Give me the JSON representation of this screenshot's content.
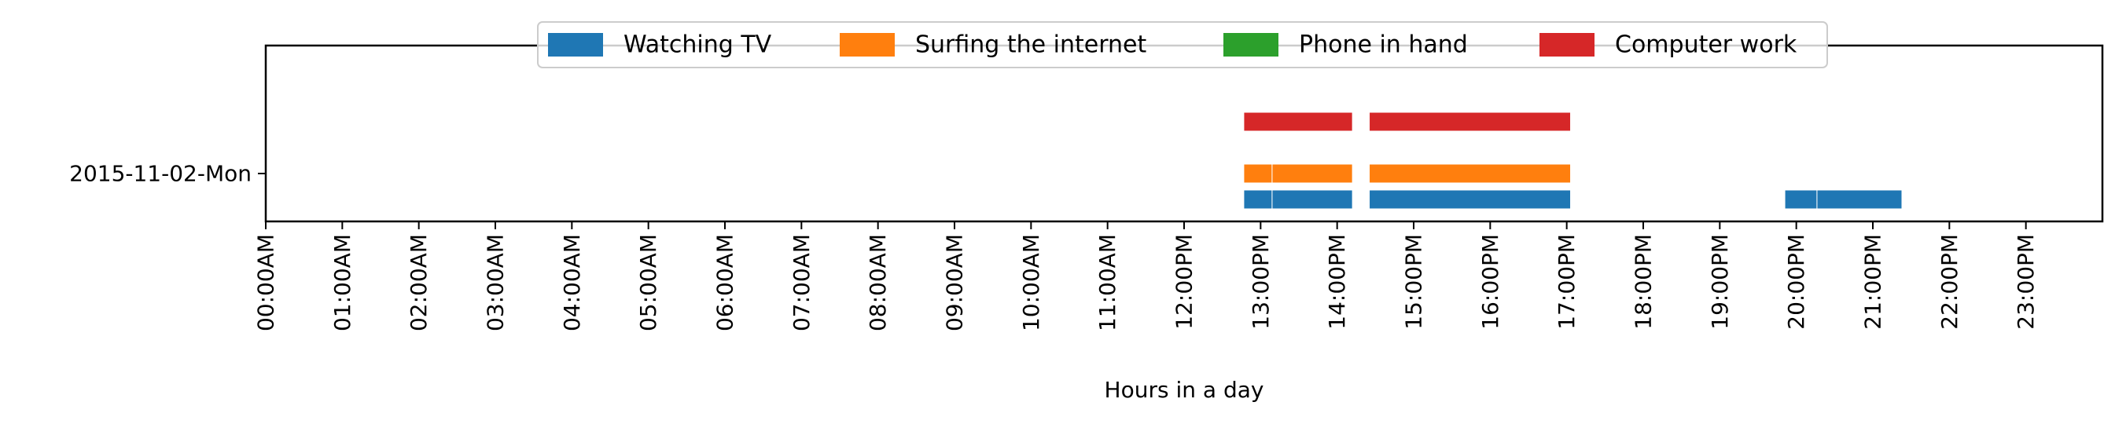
{
  "chart_data": {
    "type": "bar",
    "orientation": "broken-horizontal-bars",
    "xlabel": "Hours in a day",
    "ylabel": "",
    "xlim": [
      0,
      24
    ],
    "x_ticks": [
      "00:00AM",
      "01:00AM",
      "02:00AM",
      "03:00AM",
      "04:00AM",
      "05:00AM",
      "06:00AM",
      "07:00AM",
      "08:00AM",
      "09:00AM",
      "10:00AM",
      "11:00AM",
      "12:00PM",
      "13:00PM",
      "14:00PM",
      "15:00PM",
      "16:00PM",
      "17:00PM",
      "18:00PM",
      "19:00PM",
      "20:00PM",
      "21:00PM",
      "22:00PM",
      "23:00PM"
    ],
    "categories": [
      "2015-11-02-Mon"
    ],
    "grid": false,
    "legend_placement": "top-center",
    "series": [
      {
        "name": "Watching TV",
        "color": "#1f77b4",
        "lane": 0,
        "intervals": [
          [
            12.78,
            13.15
          ],
          [
            13.15,
            14.2
          ],
          [
            14.42,
            17.05
          ],
          [
            19.85,
            20.27
          ],
          [
            20.27,
            21.38
          ]
        ]
      },
      {
        "name": "Surfing the internet",
        "color": "#ff7f0e",
        "lane": 1,
        "intervals": [
          [
            12.78,
            13.15
          ],
          [
            13.15,
            14.2
          ],
          [
            14.42,
            17.05
          ]
        ]
      },
      {
        "name": "Phone in hand",
        "color": "#2ca02c",
        "lane": 2,
        "intervals": []
      },
      {
        "name": "Computer work",
        "color": "#d62728",
        "lane": 3,
        "intervals": [
          [
            12.78,
            14.2
          ],
          [
            14.42,
            17.05
          ]
        ]
      }
    ]
  }
}
